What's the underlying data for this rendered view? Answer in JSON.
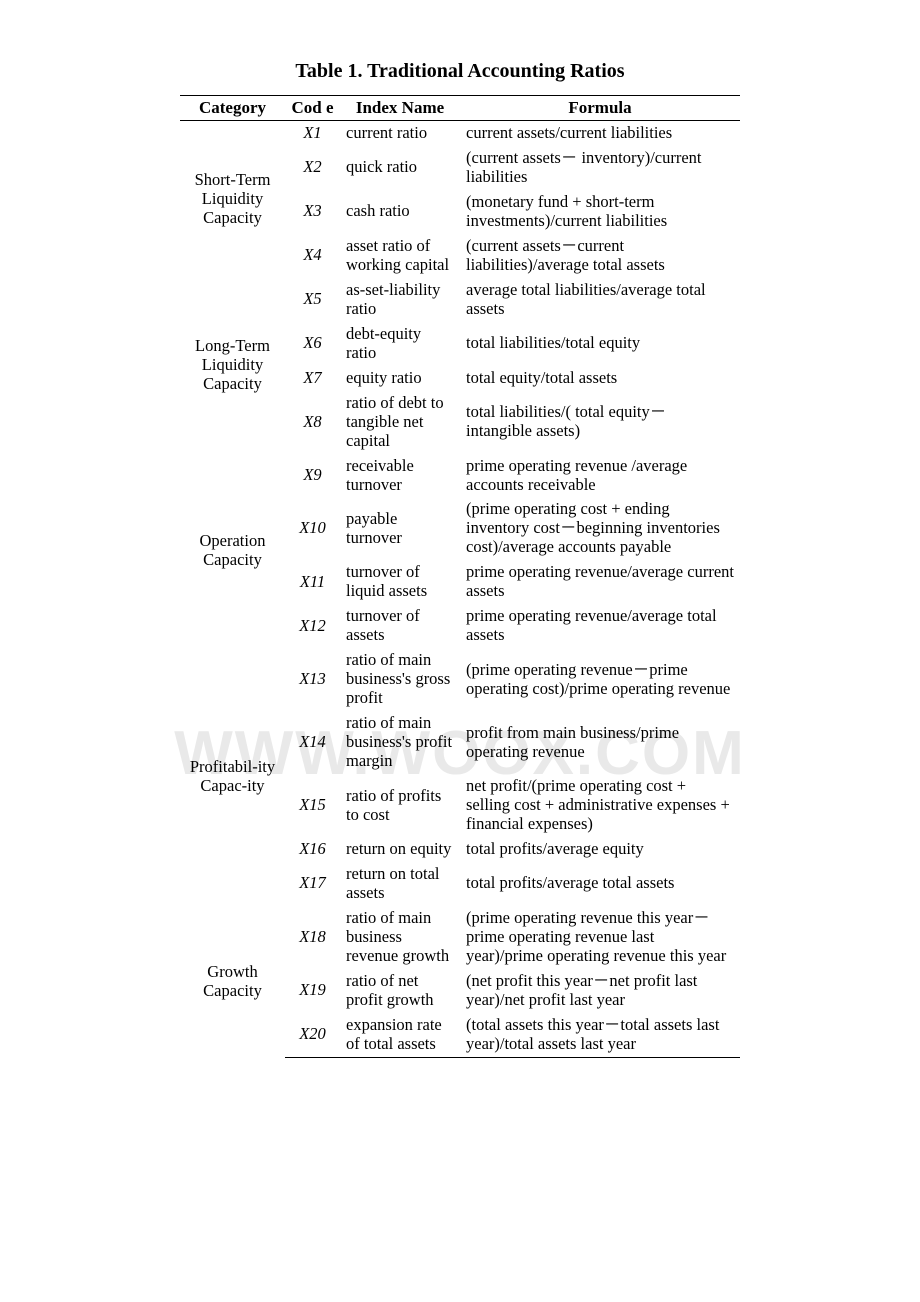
{
  "title": "Table 1. Traditional Accounting Ratios",
  "watermark": "WWW.WOOX.COM",
  "columns": {
    "category": "Category",
    "code": "Cod e",
    "name": "Index Name",
    "formula": "Formula"
  },
  "categories": [
    {
      "label": "Short-Term Liquidity Capacity",
      "rows": [
        {
          "code": "X1",
          "name": "current ratio",
          "formula": "current assets/current liabilities"
        },
        {
          "code": "X2",
          "name": "quick ratio",
          "formula": "(current assets－ inventory)/current liabilities"
        },
        {
          "code": "X3",
          "name": "cash ratio",
          "formula": "(monetary fund + short-term investments)/current liabilities"
        },
        {
          "code": "X4",
          "name": "asset ratio of working capital",
          "formula": "(current assets－current liabilities)/average total assets"
        }
      ]
    },
    {
      "label": "Long-Term Liquidity Capacity",
      "rows": [
        {
          "code": "X5",
          "name": "as-set-liability ratio",
          "formula": "average total liabilities/average total assets"
        },
        {
          "code": "X6",
          "name": "debt-equity ratio",
          "formula": "total liabilities/total equity"
        },
        {
          "code": "X7",
          "name": "equity ratio",
          "formula": "total equity/total assets"
        },
        {
          "code": "X8",
          "name": "ratio of debt to tangible net capital",
          "formula": "total liabilities/( total equity－ intangible assets)"
        }
      ]
    },
    {
      "label": "Operation Capacity",
      "rows": [
        {
          "code": "X9",
          "name": "receivable turnover",
          "formula": "prime operating revenue /average accounts receivable"
        },
        {
          "code": "X10",
          "name": "payable turnover",
          "formula": "(prime operating cost + ending inventory cost－beginning inventories cost)/average accounts payable"
        },
        {
          "code": "X11",
          "name": "turnover of liquid assets",
          "formula": "prime operating revenue/average current assets"
        },
        {
          "code": "X12",
          "name": "turnover of assets",
          "formula": "prime operating revenue/average total assets"
        }
      ]
    },
    {
      "label": "Profitabil-ity Capac-ity",
      "rows": [
        {
          "code": "X13",
          "name": "ratio of main business's gross profit",
          "formula": "(prime operating revenue－prime operating cost)/prime operating revenue"
        },
        {
          "code": "X14",
          "name": "ratio of main business's profit margin",
          "formula": "profit from main business/prime operating revenue"
        },
        {
          "code": "X15",
          "name": "ratio of profits to cost",
          "formula": "net profit/(prime operating cost + selling cost + administrative expenses + financial expenses)"
        },
        {
          "code": "X16",
          "name": "return on equity",
          "formula": "total profits/average equity"
        },
        {
          "code": "X17",
          "name": "return on total assets",
          "formula": "total profits/average total assets"
        }
      ]
    },
    {
      "label": "Growth Capacity",
      "rows": [
        {
          "code": "X18",
          "name": "ratio of main business revenue growth",
          "formula": "(prime operating revenue this year－prime operating revenue last year)/prime operating revenue this year"
        },
        {
          "code": "X19",
          "name": "ratio of net profit growth",
          "formula": "(net profit this year－net profit last year)/net profit last year"
        },
        {
          "code": "X20",
          "name": "expansion rate of total assets",
          "formula": "(total assets this year－total assets last year)/total assets last year"
        }
      ]
    }
  ]
}
